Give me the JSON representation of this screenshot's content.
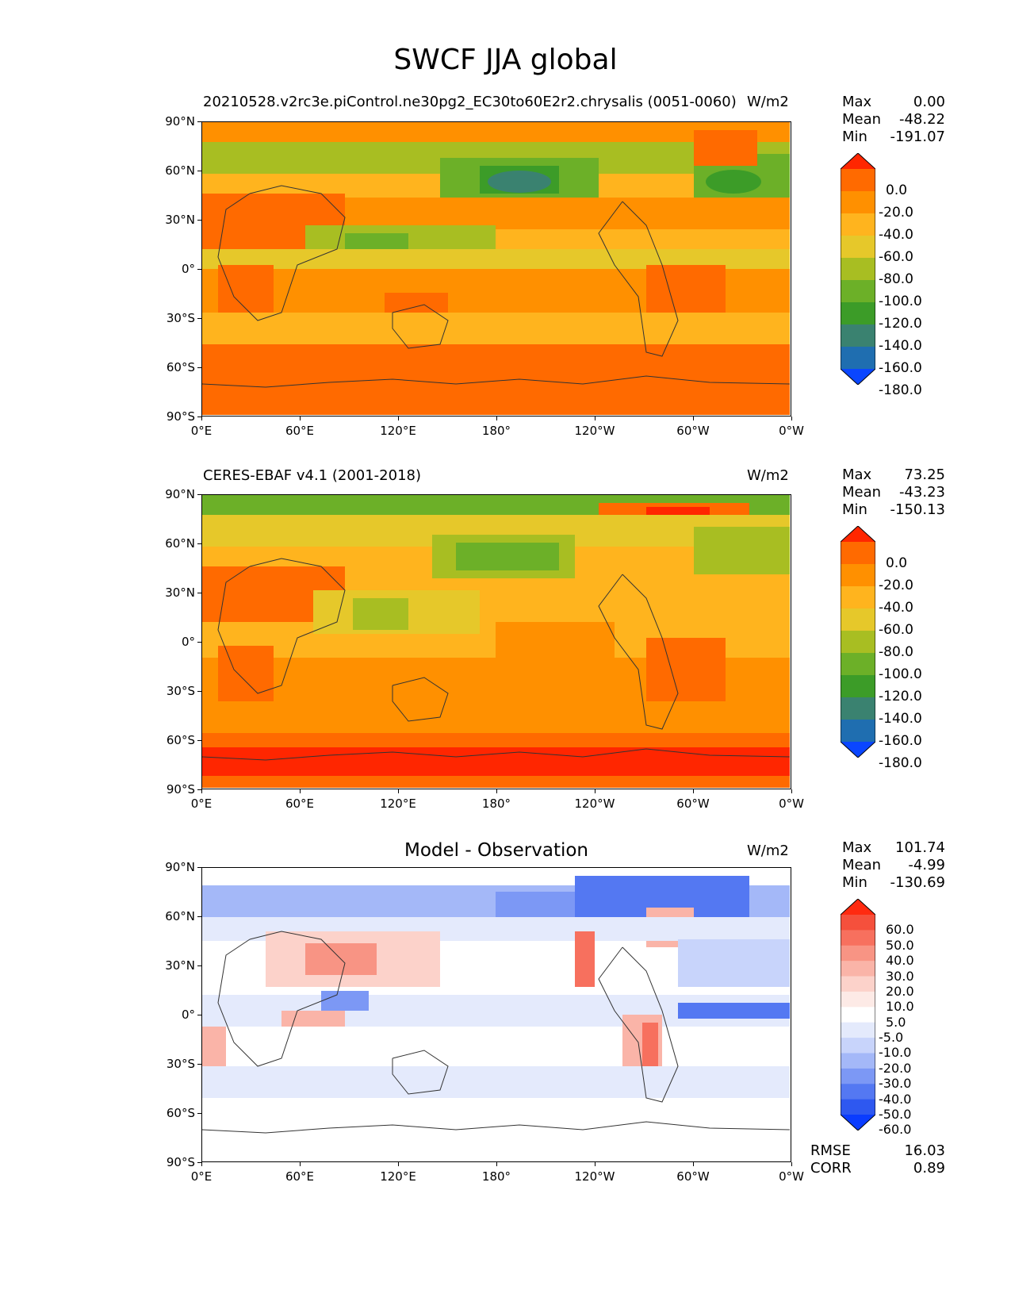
{
  "figure": {
    "title": "SWCF JJA global"
  },
  "axes": {
    "x_ticks": [
      "0°E",
      "60°E",
      "120°E",
      "180°",
      "120°W",
      "60°W",
      "0°W"
    ],
    "y_ticks": [
      "90°N",
      "60°N",
      "30°N",
      "0°",
      "30°S",
      "60°S",
      "90°S"
    ]
  },
  "panels": [
    {
      "title": "20210528.v2rc3e.piControl.ne30pg2_EC30to60E2r2.chrysalis (0051-0060)",
      "units": "W/m2",
      "stats": {
        "max_label": "Max",
        "max": "0.00",
        "mean_label": "Mean",
        "mean": "-48.22",
        "min_label": "Min",
        "min": "-191.07"
      }
    },
    {
      "title": "CERES-EBAF v4.1 (2001-2018)",
      "units": "W/m2",
      "stats": {
        "max_label": "Max",
        "max": "73.25",
        "mean_label": "Mean",
        "mean": "-43.23",
        "min_label": "Min",
        "min": "-150.13"
      }
    },
    {
      "title": "Model - Observation",
      "units": "W/m2",
      "stats": {
        "max_label": "Max",
        "max": "101.74",
        "mean_label": "Mean",
        "mean": "-4.99",
        "min_label": "Min",
        "min": "-130.69"
      }
    }
  ],
  "colorbar_abs": {
    "labels": [
      "0.0",
      "-20.0",
      "-40.0",
      "-60.0",
      "-80.0",
      "-100.0",
      "-120.0",
      "-140.0",
      "-160.0",
      "-180.0"
    ],
    "colors": [
      "#ff2600",
      "#ff6a00",
      "#ff9000",
      "#ffb41e",
      "#e6c82a",
      "#a8be22",
      "#6cb028",
      "#3c9c28",
      "#3a8270",
      "#1f6eb0",
      "#0a46ff"
    ]
  },
  "colorbar_diff": {
    "labels": [
      "60.0",
      "50.0",
      "40.0",
      "30.0",
      "20.0",
      "10.0",
      "5.0",
      "-5.0",
      "-10.0",
      "-20.0",
      "-30.0",
      "-40.0",
      "-50.0",
      "-60.0"
    ],
    "colors": [
      "#ff2a10",
      "#f5503c",
      "#f7705e",
      "#f89484",
      "#fab4a8",
      "#fcd2ca",
      "#fdeae6",
      "#ffffff",
      "#e4eafc",
      "#c8d4fb",
      "#a4b8f8",
      "#7c98f5",
      "#5478f2",
      "#2e58f0",
      "#0a3cff"
    ]
  },
  "footer": {
    "rmse_label": "RMSE",
    "rmse": "16.03",
    "corr_label": "CORR",
    "corr": "0.89"
  },
  "chart_data": [
    {
      "type": "heatmap",
      "title": "20210528.v2rc3e.piControl.ne30pg2_EC30to60E2r2.chrysalis (0051-0060)",
      "units": "W/m2",
      "x_range": [
        0,
        360
      ],
      "y_range": [
        -90,
        90
      ],
      "zonal_profile_lat": [
        90,
        75,
        60,
        45,
        30,
        15,
        0,
        -15,
        -30,
        -45,
        -60,
        -75,
        -90
      ],
      "zonal_profile_approx": [
        -30,
        -90,
        -110,
        -70,
        -45,
        -70,
        -55,
        -35,
        -40,
        -40,
        -25,
        -20,
        -20
      ],
      "color_levels": [
        0,
        -20,
        -40,
        -60,
        -80,
        -100,
        -120,
        -140,
        -160,
        -180
      ],
      "max": 0.0,
      "mean": -48.22,
      "min": -191.07
    },
    {
      "type": "heatmap",
      "title": "CERES-EBAF v4.1 (2001-2018)",
      "units": "W/m2",
      "x_range": [
        0,
        360
      ],
      "y_range": [
        -90,
        90
      ],
      "zonal_profile_lat": [
        90,
        75,
        60,
        45,
        30,
        15,
        0,
        -15,
        -30,
        -45,
        -60,
        -75,
        -90
      ],
      "zonal_profile_approx": [
        -30,
        -60,
        -80,
        -70,
        -40,
        -55,
        -50,
        -35,
        -40,
        -40,
        -25,
        -10,
        -20
      ],
      "color_levels": [
        0,
        -20,
        -40,
        -60,
        -80,
        -100,
        -120,
        -140,
        -160,
        -180
      ],
      "max": 73.25,
      "mean": -43.23,
      "min": -150.13
    },
    {
      "type": "heatmap",
      "title": "Model - Observation",
      "units": "W/m2",
      "x_range": [
        0,
        360
      ],
      "y_range": [
        -90,
        90
      ],
      "zonal_profile_lat": [
        90,
        75,
        60,
        45,
        30,
        15,
        0,
        -15,
        -30,
        -45,
        -60,
        -75,
        -90
      ],
      "zonal_profile_approx": [
        5,
        -30,
        -25,
        -5,
        5,
        -15,
        -5,
        0,
        0,
        -10,
        0,
        0,
        0
      ],
      "color_levels": [
        60,
        50,
        40,
        30,
        20,
        10,
        5,
        -5,
        -10,
        -20,
        -30,
        -40,
        -50,
        -60
      ],
      "max": 101.74,
      "mean": -4.99,
      "min": -130.69,
      "rmse": 16.03,
      "corr": 0.89
    }
  ]
}
